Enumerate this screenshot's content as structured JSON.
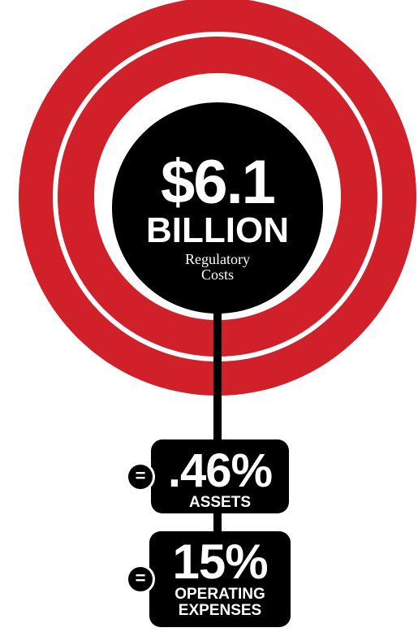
{
  "graphic": {
    "amount": "$6.1",
    "unit": "BILLION",
    "description": "Regulatory\nCosts"
  },
  "stats": [
    {
      "symbol": "=",
      "value": ".46%",
      "label": "ASSETS"
    },
    {
      "symbol": "=",
      "value": "15%",
      "label": "OPERATING\nEXPENSES"
    }
  ],
  "colors": {
    "ring": "#d0202a",
    "dark": "#000000",
    "background": "#ffffff"
  }
}
